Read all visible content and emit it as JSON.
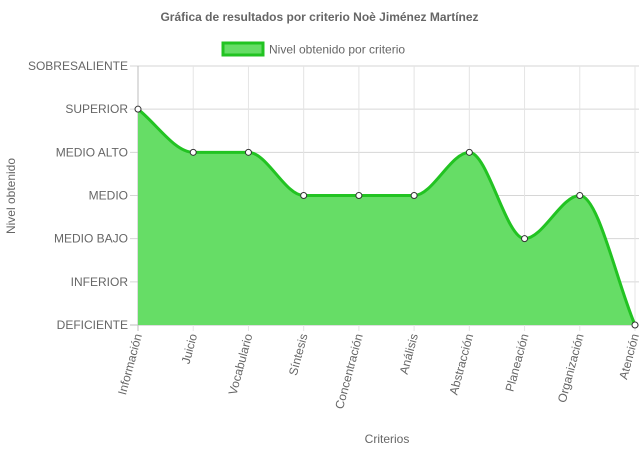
{
  "chart_data": {
    "type": "area",
    "title": "Gráfica de resultados por criterio Noè Jiménez Martínez",
    "xlabel": "Criterios",
    "ylabel": "Nivel obtenido",
    "legend": {
      "position": "top",
      "entries": [
        "Nivel obtenido por criterio"
      ]
    },
    "y_levels": [
      "DEFICIENTE",
      "INFERIOR",
      "MEDIO BAJO",
      "MEDIO",
      "MEDIO ALTO",
      "SUPERIOR",
      "SOBRESALIENTE"
    ],
    "ylim": [
      0,
      6
    ],
    "grid": true,
    "categories": [
      "Información",
      "Juicio",
      "Vocabulario",
      "Síntesis",
      "Concentración",
      "Análisis",
      "Abstracción",
      "Planeación",
      "Organización",
      "Atención"
    ],
    "series": [
      {
        "name": "Nivel obtenido por criterio",
        "values": [
          5,
          4,
          4,
          3,
          3,
          3,
          4,
          2,
          3,
          0
        ],
        "color": "#22c322",
        "fill": "#66dd66"
      }
    ]
  }
}
